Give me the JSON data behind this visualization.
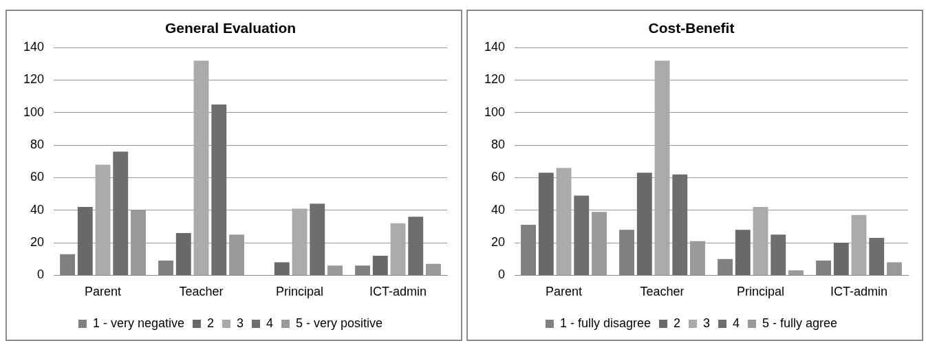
{
  "chart_data": [
    {
      "type": "bar",
      "title": "General Evaluation",
      "categories": [
        "Parent",
        "Teacher",
        "Principal",
        "ICT-admin"
      ],
      "ylim": [
        0,
        140
      ],
      "yticks": [
        0,
        20,
        40,
        60,
        80,
        100,
        120,
        140
      ],
      "grid": "y",
      "legend": "bottom",
      "series": [
        {
          "name": "1 - very negative",
          "color": "#808080",
          "values": [
            13,
            9,
            0,
            6
          ]
        },
        {
          "name": "2",
          "color": "#696969",
          "values": [
            42,
            26,
            8,
            12
          ]
        },
        {
          "name": "3",
          "color": "#aaaaaa",
          "values": [
            68,
            132,
            41,
            32
          ]
        },
        {
          "name": "4",
          "color": "#6e6e6e",
          "values": [
            76,
            105,
            44,
            36
          ]
        },
        {
          "name": "5 - very positive",
          "color": "#999999",
          "values": [
            40,
            25,
            6,
            7
          ]
        }
      ]
    },
    {
      "type": "bar",
      "title": "Cost-Benefit",
      "categories": [
        "Parent",
        "Teacher",
        "Principal",
        "ICT-admin"
      ],
      "ylim": [
        0,
        140
      ],
      "yticks": [
        0,
        20,
        40,
        60,
        80,
        100,
        120,
        140
      ],
      "grid": "y",
      "legend": "bottom",
      "series": [
        {
          "name": "1 - fully disagree",
          "color": "#808080",
          "values": [
            31,
            28,
            10,
            9
          ]
        },
        {
          "name": "2",
          "color": "#696969",
          "values": [
            63,
            63,
            28,
            20
          ]
        },
        {
          "name": "3",
          "color": "#aaaaaa",
          "values": [
            66,
            132,
            42,
            37
          ]
        },
        {
          "name": "4",
          "color": "#6e6e6e",
          "values": [
            49,
            62,
            25,
            23
          ]
        },
        {
          "name": "5 - fully agree",
          "color": "#999999",
          "values": [
            39,
            21,
            3,
            8
          ]
        }
      ]
    }
  ]
}
